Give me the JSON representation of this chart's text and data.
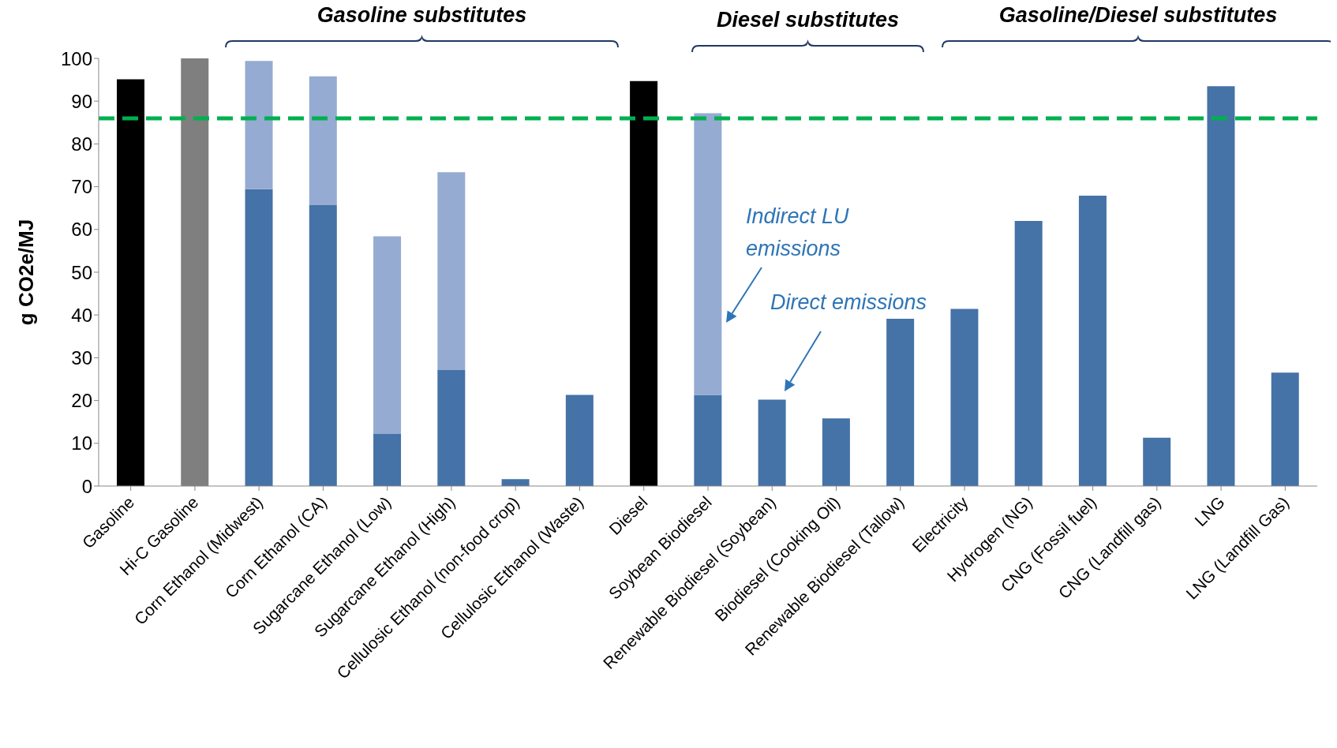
{
  "chart_data": {
    "type": "bar",
    "stacked": true,
    "ylabel": "g CO2e/MJ",
    "categories": [
      "Gasoline",
      "Hi-C Gasoline",
      "Corn Ethanol (Midwest)",
      "Corn Ethanol (CA)",
      "Sugarcane Ethanol (Low)",
      "Sugarcane Ethanol (High)",
      "Cellulosic Ethanol (non-food  crop)",
      "Cellulosic Ethanol (Waste)",
      "Diesel",
      "Soybean Biodiesel",
      "Renewable Biodiesel (Soybean)",
      "Biodiesel (Cooking Oil)",
      "Renewable Biodiesel (Tallow)",
      "Electricity",
      "Hydrogen (NG)",
      "CNG (Fossil fuel)",
      "CNG (Landfill  gas)",
      "LNG",
      "LNG (Landfill  Gas)"
    ],
    "series": [
      {
        "colors": [
          "#000000",
          "#7f7f7f",
          "#4572a7",
          "#4572a7",
          "#4572a7",
          "#4572a7",
          "#4572a7",
          "#4572a7",
          "#000000",
          "#4572a7",
          "#4572a7",
          "#4572a7",
          "#4572a7",
          "#4572a7",
          "#4572a7",
          "#4572a7",
          "#4572a7",
          "#4572a7",
          "#4572a7"
        ],
        "values": [
          95.1,
          100,
          69.4,
          65.7,
          12.2,
          27.1,
          1.6,
          21.3,
          94.7,
          21.3,
          20.2,
          15.8,
          39.1,
          41.4,
          62,
          67.9,
          11.3,
          93.5,
          26.5
        ]
      },
      {
        "color": "#95abd2",
        "values": [
          null,
          null,
          30,
          30.1,
          46.2,
          46.3,
          null,
          null,
          null,
          65.9,
          null,
          null,
          null,
          null,
          null,
          null,
          null,
          null,
          null
        ]
      }
    ],
    "ylim": [
      0,
      100
    ],
    "yticks": [
      0,
      10,
      20,
      30,
      40,
      50,
      60,
      70,
      80,
      90,
      100
    ],
    "grid": false,
    "legend": false,
    "ref_lines": [
      {
        "axis": "y",
        "value": 86,
        "color": "#00b050",
        "line_style": "dashed"
      }
    ],
    "annotations": [
      "Gasoline substitutes",
      "Diesel substitutes",
      "Gasoline/Diesel substitutes",
      "Indirect LU emissions",
      "Direct emissions"
    ]
  }
}
